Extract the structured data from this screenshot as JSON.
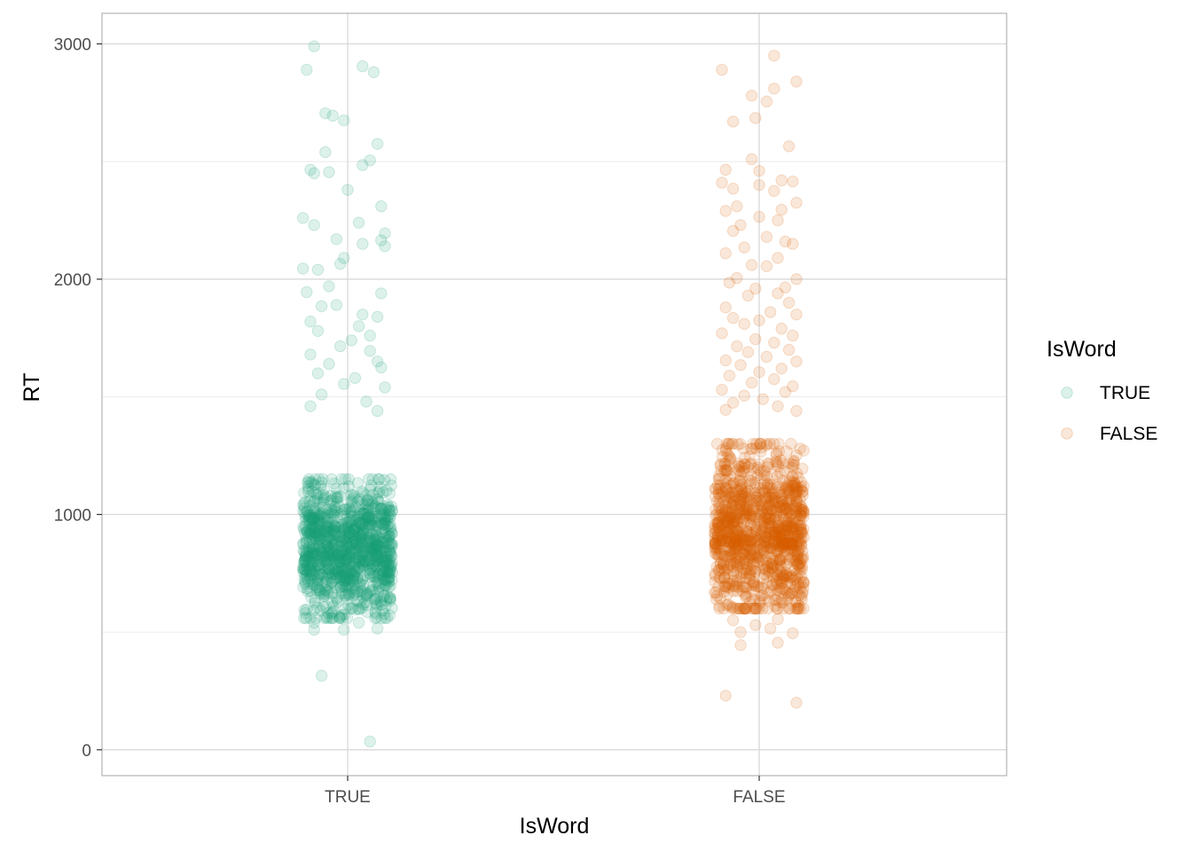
{
  "chart_data": {
    "type": "scatter",
    "subtype": "jitter strip plot",
    "xlabel": "IsWord",
    "ylabel": "RT",
    "categories": [
      "TRUE",
      "FALSE"
    ],
    "ylim": [
      -110,
      3130
    ],
    "yticks": [
      0,
      1000,
      2000,
      3000
    ],
    "ytick_labels": [
      "0",
      "1000",
      "2000",
      "3000"
    ],
    "grid": "major and minor, light grey",
    "point_alpha": 0.15,
    "legend": {
      "title": "IsWord",
      "position": "right",
      "entries": [
        "TRUE",
        "FALSE"
      ]
    },
    "series": [
      {
        "name": "TRUE",
        "color": "#1b9e77",
        "category": "TRUE",
        "dense_core": {
          "approx_n": 1100,
          "rt_center": 850,
          "rt_spread": 140,
          "rt_range": [
            560,
            1150
          ]
        },
        "visible_values": [
          {
            "x": -0.09,
            "y": 2990
          },
          {
            "x": 0.04,
            "y": 2905
          },
          {
            "x": -0.11,
            "y": 2890
          },
          {
            "x": 0.07,
            "y": 2880
          },
          {
            "x": -0.06,
            "y": 2705
          },
          {
            "x": -0.04,
            "y": 2695
          },
          {
            "x": -0.01,
            "y": 2675
          },
          {
            "x": 0.08,
            "y": 2575
          },
          {
            "x": -0.06,
            "y": 2540
          },
          {
            "x": 0.06,
            "y": 2505
          },
          {
            "x": 0.04,
            "y": 2485
          },
          {
            "x": -0.1,
            "y": 2465
          },
          {
            "x": -0.05,
            "y": 2455
          },
          {
            "x": -0.09,
            "y": 2450
          },
          {
            "x": 0.0,
            "y": 2380
          },
          {
            "x": 0.09,
            "y": 2310
          },
          {
            "x": -0.12,
            "y": 2260
          },
          {
            "x": 0.03,
            "y": 2240
          },
          {
            "x": -0.09,
            "y": 2230
          },
          {
            "x": 0.1,
            "y": 2195
          },
          {
            "x": -0.03,
            "y": 2170
          },
          {
            "x": 0.09,
            "y": 2165
          },
          {
            "x": 0.04,
            "y": 2150
          },
          {
            "x": 0.1,
            "y": 2140
          },
          {
            "x": -0.01,
            "y": 2090
          },
          {
            "x": -0.02,
            "y": 2065
          },
          {
            "x": -0.12,
            "y": 2045
          },
          {
            "x": -0.08,
            "y": 2040
          },
          {
            "x": -0.05,
            "y": 1970
          },
          {
            "x": -0.11,
            "y": 1945
          },
          {
            "x": 0.09,
            "y": 1940
          },
          {
            "x": -0.03,
            "y": 1890
          },
          {
            "x": -0.07,
            "y": 1885
          },
          {
            "x": 0.04,
            "y": 1850
          },
          {
            "x": 0.08,
            "y": 1840
          },
          {
            "x": -0.1,
            "y": 1820
          },
          {
            "x": 0.03,
            "y": 1800
          },
          {
            "x": -0.08,
            "y": 1780
          },
          {
            "x": 0.06,
            "y": 1760
          },
          {
            "x": 0.01,
            "y": 1740
          },
          {
            "x": -0.02,
            "y": 1715
          },
          {
            "x": 0.06,
            "y": 1695
          },
          {
            "x": -0.1,
            "y": 1680
          },
          {
            "x": 0.08,
            "y": 1650
          },
          {
            "x": -0.05,
            "y": 1640
          },
          {
            "x": 0.09,
            "y": 1625
          },
          {
            "x": -0.08,
            "y": 1600
          },
          {
            "x": 0.02,
            "y": 1580
          },
          {
            "x": -0.01,
            "y": 1555
          },
          {
            "x": 0.1,
            "y": 1540
          },
          {
            "x": -0.07,
            "y": 1510
          },
          {
            "x": 0.05,
            "y": 1480
          },
          {
            "x": -0.1,
            "y": 1460
          },
          {
            "x": 0.08,
            "y": 1440
          },
          {
            "x": -0.09,
            "y": 540
          },
          {
            "x": 0.03,
            "y": 540
          },
          {
            "x": -0.01,
            "y": 510
          },
          {
            "x": 0.08,
            "y": 515
          },
          {
            "x": -0.09,
            "y": 510
          },
          {
            "x": -0.07,
            "y": 315
          },
          {
            "x": 0.06,
            "y": 35
          }
        ]
      },
      {
        "name": "FALSE",
        "color": "#d95f02",
        "category": "FALSE",
        "dense_core": {
          "approx_n": 1100,
          "rt_center": 930,
          "rt_spread": 170,
          "rt_range": [
            600,
            1300
          ]
        },
        "visible_values": [
          {
            "x": 0.04,
            "y": 2950
          },
          {
            "x": -0.1,
            "y": 2890
          },
          {
            "x": 0.1,
            "y": 2840
          },
          {
            "x": 0.04,
            "y": 2810
          },
          {
            "x": -0.02,
            "y": 2780
          },
          {
            "x": 0.02,
            "y": 2755
          },
          {
            "x": -0.07,
            "y": 2670
          },
          {
            "x": -0.01,
            "y": 2685
          },
          {
            "x": 0.08,
            "y": 2565
          },
          {
            "x": -0.02,
            "y": 2510
          },
          {
            "x": 0.0,
            "y": 2460
          },
          {
            "x": -0.09,
            "y": 2465
          },
          {
            "x": 0.06,
            "y": 2420
          },
          {
            "x": 0.09,
            "y": 2415
          },
          {
            "x": -0.1,
            "y": 2410
          },
          {
            "x": -0.07,
            "y": 2385
          },
          {
            "x": 0.0,
            "y": 2400
          },
          {
            "x": 0.04,
            "y": 2375
          },
          {
            "x": -0.06,
            "y": 2310
          },
          {
            "x": 0.1,
            "y": 2325
          },
          {
            "x": 0.06,
            "y": 2295
          },
          {
            "x": -0.09,
            "y": 2290
          },
          {
            "x": 0.0,
            "y": 2265
          },
          {
            "x": 0.05,
            "y": 2250
          },
          {
            "x": -0.05,
            "y": 2230
          },
          {
            "x": -0.07,
            "y": 2205
          },
          {
            "x": 0.02,
            "y": 2180
          },
          {
            "x": 0.07,
            "y": 2160
          },
          {
            "x": 0.09,
            "y": 2150
          },
          {
            "x": -0.04,
            "y": 2135
          },
          {
            "x": -0.09,
            "y": 2110
          },
          {
            "x": 0.05,
            "y": 2090
          },
          {
            "x": -0.02,
            "y": 2060
          },
          {
            "x": 0.02,
            "y": 2055
          },
          {
            "x": 0.1,
            "y": 2000
          },
          {
            "x": -0.06,
            "y": 2005
          },
          {
            "x": -0.08,
            "y": 1985
          },
          {
            "x": 0.07,
            "y": 1965
          },
          {
            "x": -0.01,
            "y": 1960
          },
          {
            "x": 0.05,
            "y": 1940
          },
          {
            "x": -0.03,
            "y": 1930
          },
          {
            "x": 0.08,
            "y": 1900
          },
          {
            "x": -0.09,
            "y": 1880
          },
          {
            "x": 0.03,
            "y": 1860
          },
          {
            "x": 0.1,
            "y": 1850
          },
          {
            "x": -0.07,
            "y": 1835
          },
          {
            "x": 0.0,
            "y": 1825
          },
          {
            "x": -0.04,
            "y": 1810
          },
          {
            "x": 0.06,
            "y": 1790
          },
          {
            "x": -0.1,
            "y": 1770
          },
          {
            "x": 0.09,
            "y": 1760
          },
          {
            "x": -0.01,
            "y": 1745
          },
          {
            "x": 0.04,
            "y": 1730
          },
          {
            "x": -0.06,
            "y": 1715
          },
          {
            "x": 0.08,
            "y": 1700
          },
          {
            "x": -0.03,
            "y": 1690
          },
          {
            "x": 0.02,
            "y": 1670
          },
          {
            "x": -0.09,
            "y": 1655
          },
          {
            "x": 0.1,
            "y": 1650
          },
          {
            "x": -0.05,
            "y": 1635
          },
          {
            "x": 0.06,
            "y": 1620
          },
          {
            "x": 0.0,
            "y": 1605
          },
          {
            "x": -0.08,
            "y": 1590
          },
          {
            "x": 0.04,
            "y": 1575
          },
          {
            "x": -0.02,
            "y": 1560
          },
          {
            "x": 0.09,
            "y": 1545
          },
          {
            "x": -0.1,
            "y": 1530
          },
          {
            "x": 0.07,
            "y": 1520
          },
          {
            "x": -0.04,
            "y": 1505
          },
          {
            "x": 0.01,
            "y": 1490
          },
          {
            "x": -0.07,
            "y": 1475
          },
          {
            "x": 0.05,
            "y": 1460
          },
          {
            "x": -0.09,
            "y": 1445
          },
          {
            "x": 0.1,
            "y": 1440
          },
          {
            "x": -0.07,
            "y": 550
          },
          {
            "x": 0.05,
            "y": 555
          },
          {
            "x": -0.01,
            "y": 530
          },
          {
            "x": 0.03,
            "y": 515
          },
          {
            "x": -0.05,
            "y": 500
          },
          {
            "x": 0.09,
            "y": 495
          },
          {
            "x": -0.05,
            "y": 445
          },
          {
            "x": 0.05,
            "y": 455
          },
          {
            "x": -0.09,
            "y": 230
          },
          {
            "x": 0.1,
            "y": 200
          }
        ]
      }
    ]
  }
}
